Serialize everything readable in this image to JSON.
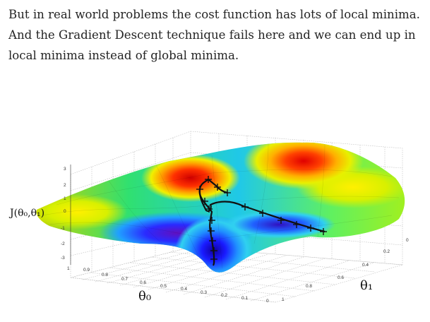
{
  "article": {
    "paragraph": "But in real world problems the cost function has lots of local minima. And the Gradient Descent technique fails here and we can end up in local minima instead of global minima."
  },
  "plot": {
    "z_label": "J(θ₀,θ₁)",
    "x_label": "θ₀",
    "y_label": "θ₁",
    "z_ticks": [
      "3",
      "2",
      "1",
      "0",
      "-1",
      "-2",
      "-3"
    ],
    "x_ticks": [
      "1",
      "0.9",
      "0.8",
      "0.7",
      "0.6",
      "0.5",
      "0.4",
      "0.3",
      "0.2",
      "0.1",
      "0"
    ],
    "y_ticks": [
      "0",
      "0.2",
      "0.4",
      "0.6",
      "0.8",
      "1"
    ],
    "colors": {
      "high": "#e01010",
      "mid": "#f5e000",
      "low": "#1a1aff",
      "path": "#111111"
    }
  }
}
